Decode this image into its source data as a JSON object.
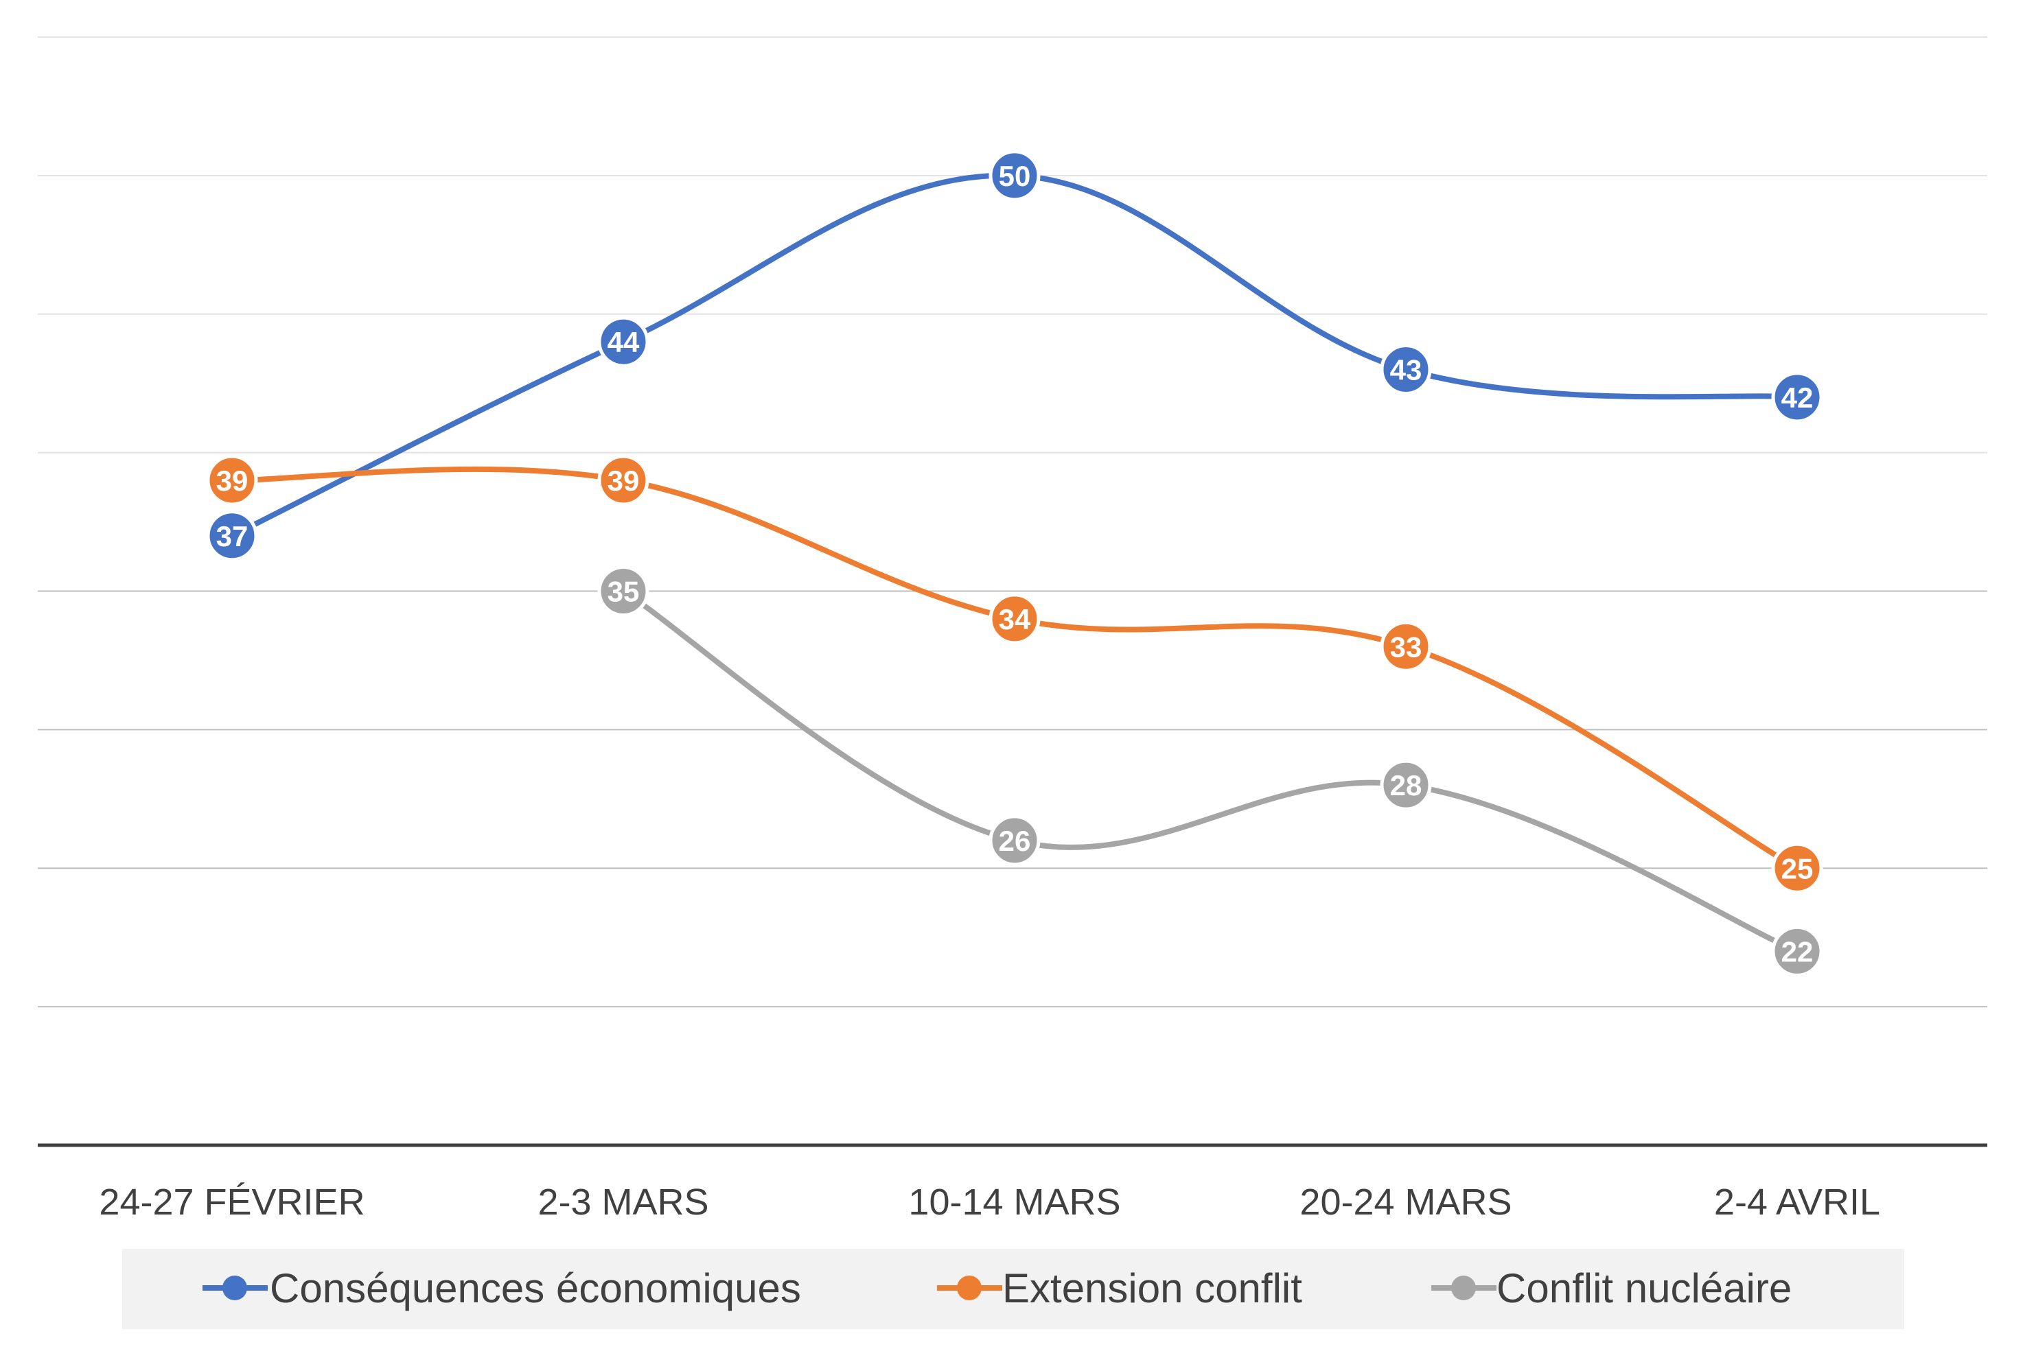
{
  "chart_data": {
    "type": "line",
    "title": "",
    "xlabel": "",
    "ylabel": "",
    "categories": [
      "24-27 FÉVRIER",
      "2-3 MARS",
      "10-14 MARS",
      "20-24 MARS",
      "2-4 AVRIL"
    ],
    "ylim": [
      15,
      55
    ],
    "grid": true,
    "legend_position": "bottom",
    "series": [
      {
        "name": "Conséquences économiques",
        "color": "#4472c4",
        "values": [
          37,
          44,
          50,
          43,
          42
        ]
      },
      {
        "name": "Extension conflit",
        "color": "#ed7d31",
        "values": [
          39,
          39,
          34,
          33,
          25
        ]
      },
      {
        "name": "Conflit nucléaire",
        "color": "#a5a5a5",
        "values": [
          null,
          35,
          26,
          28,
          22
        ]
      }
    ]
  }
}
